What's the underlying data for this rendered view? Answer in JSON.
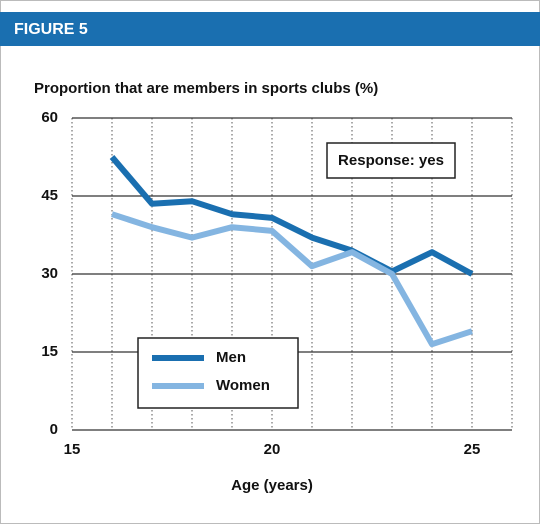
{
  "header": {
    "title": "FIGURE 5"
  },
  "chart_data": {
    "type": "line",
    "title": "Proportion that are members in sports clubs (%)",
    "xlabel": "Age (years)",
    "annotation": "Response: yes",
    "x": [
      16,
      17,
      18,
      19,
      20,
      21,
      22,
      23,
      24,
      25
    ],
    "series": [
      {
        "name": "Men",
        "color": "#1a6fb0",
        "values": [
          52.5,
          43.5,
          44,
          41.5,
          40.8,
          37,
          34.5,
          30.5,
          34.2,
          30
        ]
      },
      {
        "name": "Women",
        "color": "#84b5e1",
        "values": [
          41.5,
          39,
          37,
          39,
          38.3,
          31.5,
          34.2,
          30,
          16.5,
          19
        ]
      }
    ],
    "xlim": [
      15,
      26
    ],
    "ylim": [
      0,
      60
    ],
    "xticks": [
      15,
      20,
      25
    ],
    "yticks": [
      0,
      15,
      30,
      45,
      60
    ],
    "grid": true,
    "legend": "lower left"
  }
}
